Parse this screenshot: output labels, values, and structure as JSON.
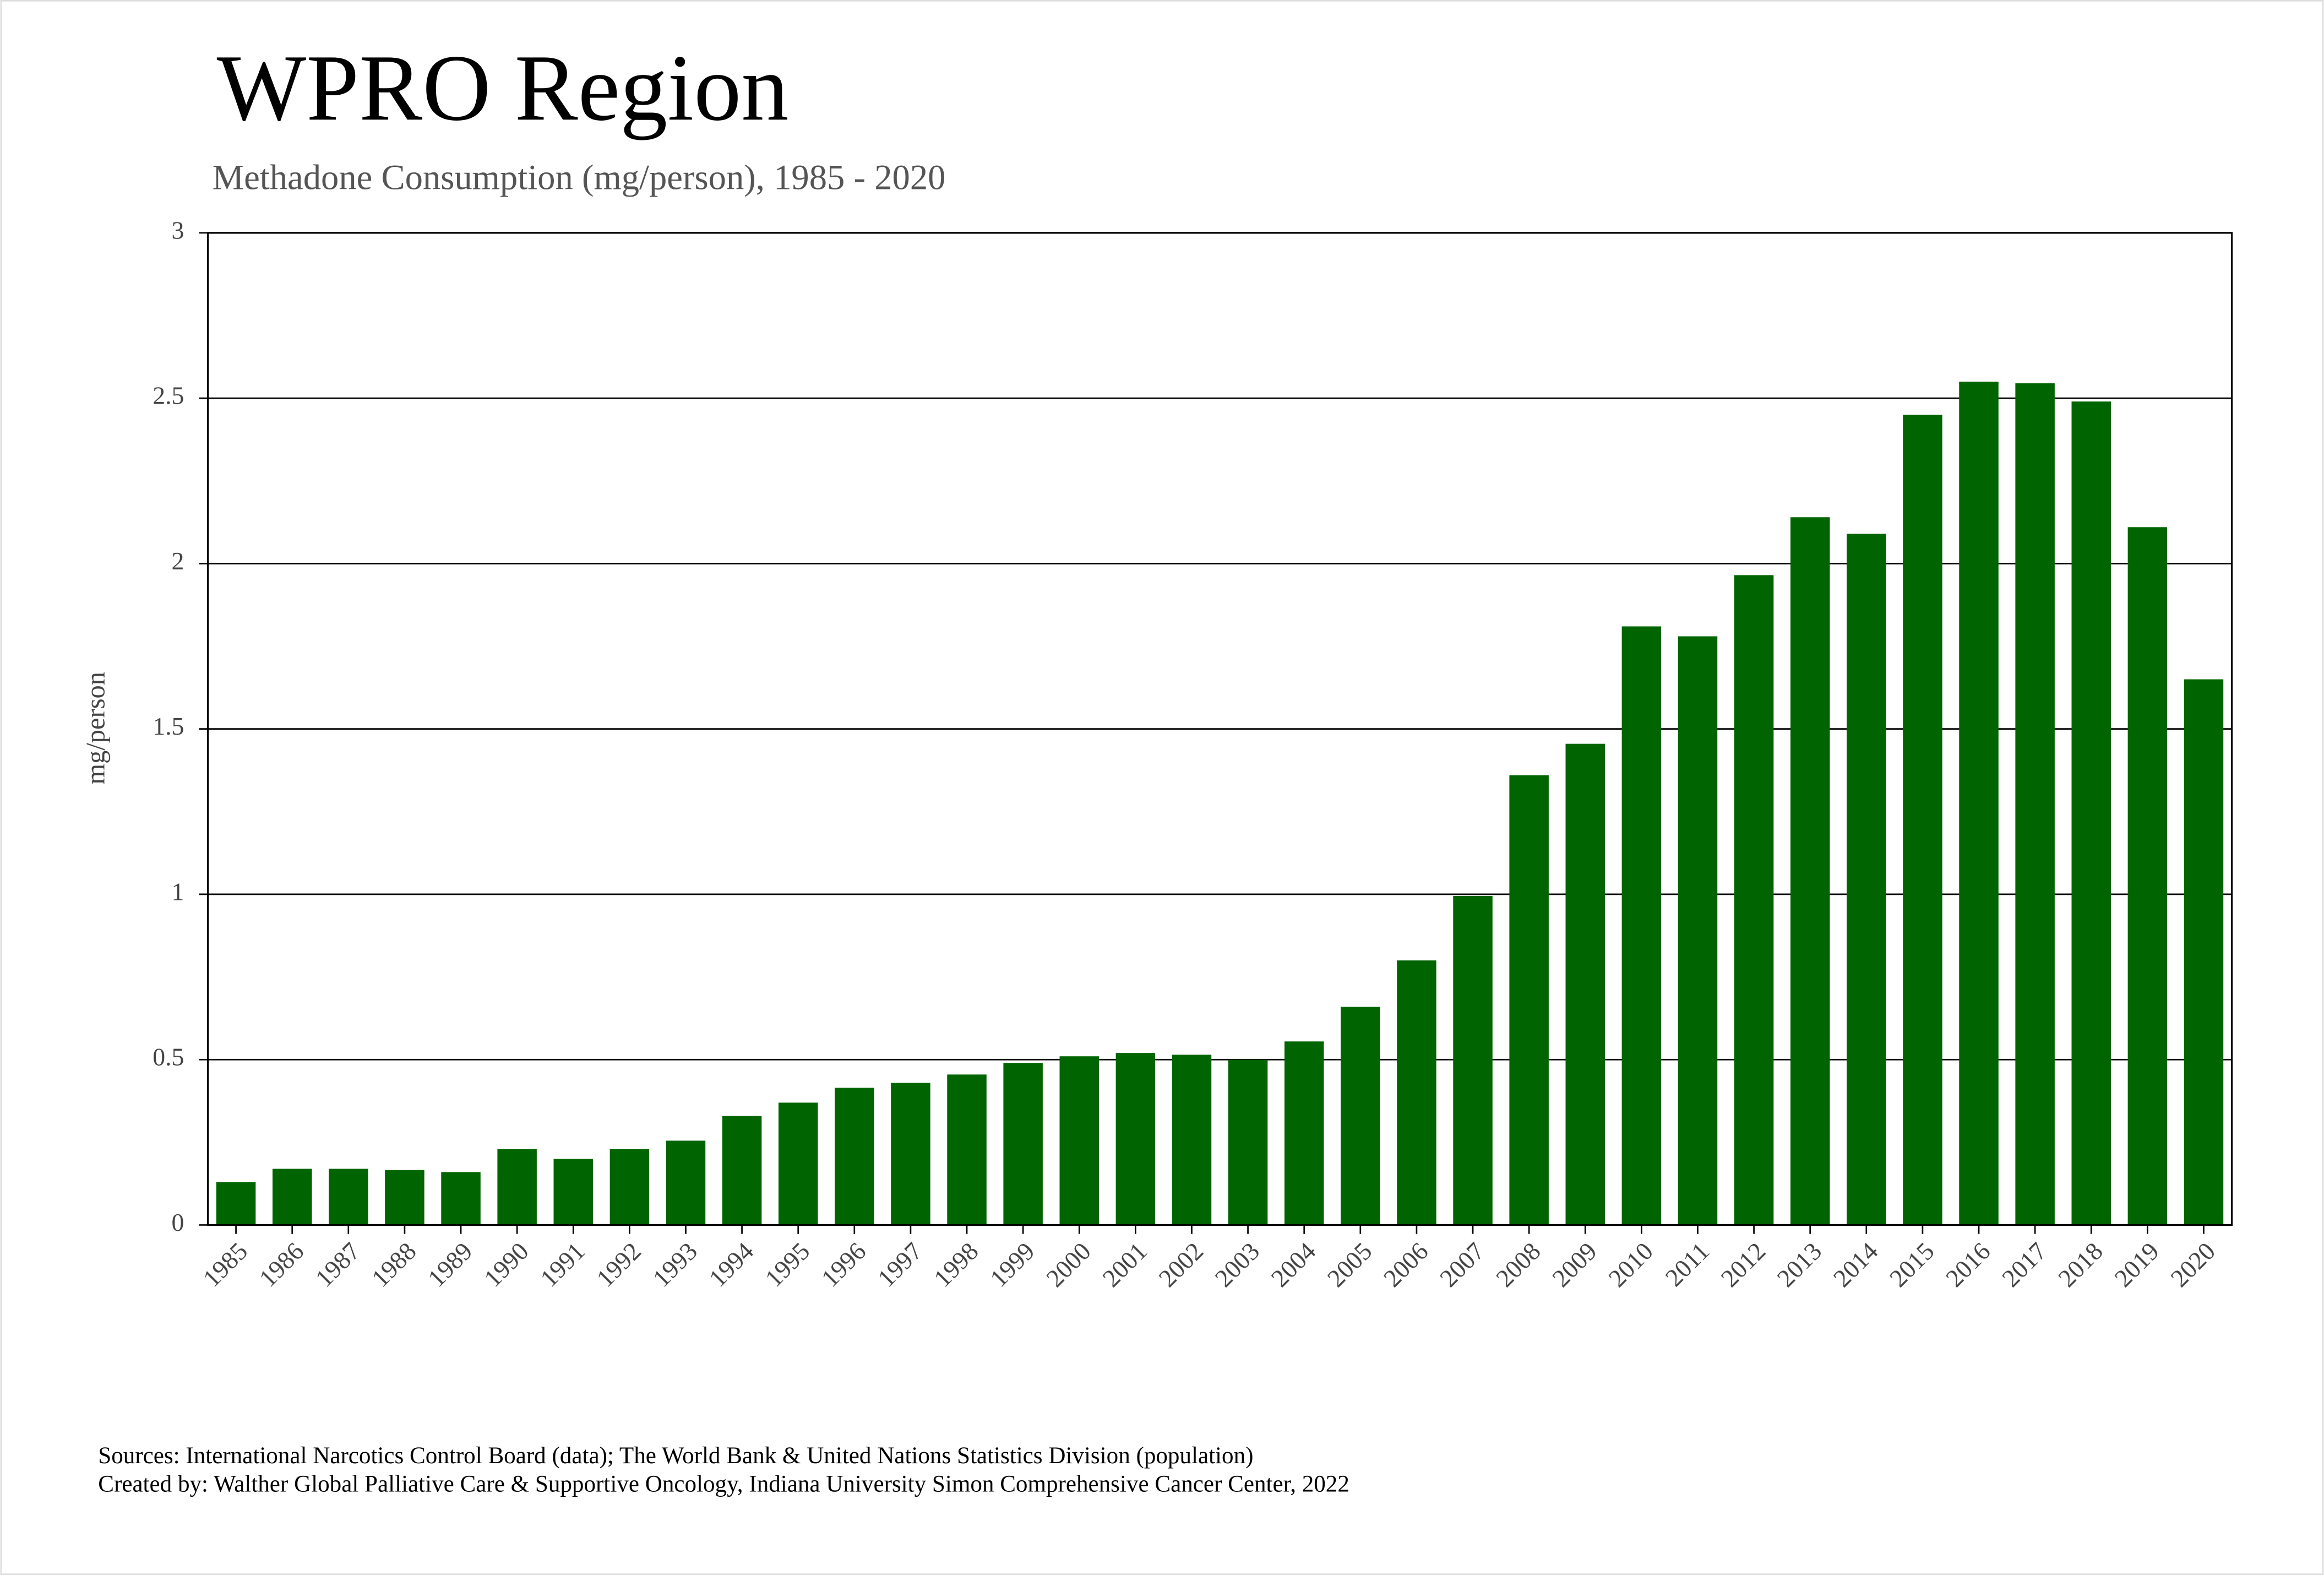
{
  "chart_data": {
    "type": "bar",
    "title": "WPRO Region",
    "subtitle": "Methadone Consumption (mg/person), 1985 - 2020",
    "y_label": "mg/person",
    "categories": [
      "1985",
      "1986",
      "1987",
      "1988",
      "1989",
      "1990",
      "1991",
      "1992",
      "1993",
      "1994",
      "1995",
      "1996",
      "1997",
      "1998",
      "1999",
      "2000",
      "2001",
      "2002",
      "2003",
      "2004",
      "2005",
      "2006",
      "2007",
      "2008",
      "2009",
      "2010",
      "2011",
      "2012",
      "2013",
      "2014",
      "2015",
      "2016",
      "2017",
      "2018",
      "2019",
      "2020"
    ],
    "values": [
      0.13,
      0.17,
      0.17,
      0.166,
      0.16,
      0.23,
      0.2,
      0.23,
      0.255,
      0.33,
      0.37,
      0.415,
      0.43,
      0.455,
      0.49,
      0.51,
      0.52,
      0.515,
      0.5,
      0.555,
      0.66,
      0.8,
      0.995,
      1.36,
      1.455,
      1.81,
      1.78,
      1.965,
      2.14,
      2.09,
      2.45,
      2.55,
      2.545,
      2.49,
      2.11,
      1.65
    ],
    "color": "#006400",
    "ylim": [
      0,
      3
    ],
    "yticks": [
      0,
      0.5,
      1,
      1.5,
      2,
      2.5,
      3
    ],
    "grid": true,
    "footnotes": [
      "Sources: International Narcotics Control Board (data); The World Bank & United Nations Statistics Division (population)",
      "Created by: Walther Global Palliative Care & Supportive Oncology, Indiana University Simon Comprehensive Cancer Center, 2022"
    ]
  }
}
